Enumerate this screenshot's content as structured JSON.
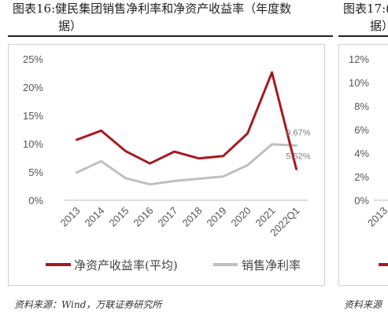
{
  "left_panel": {
    "title_line1": "图表16:健民集团销售净利率和净资产收益率（年度数",
    "title_line2": "据）",
    "source": "资料来源：Wind，万联证券研究所"
  },
  "right_panel": {
    "title_line1": "图表17:(",
    "title_line2": "据）",
    "source": "资料来源",
    "y_ticks": [
      "12%",
      "10%",
      "8%",
      "6%",
      "4%",
      "2%",
      "0%"
    ],
    "x_tick_partial": "2013"
  },
  "chart_data": {
    "type": "line",
    "categories": [
      "2013",
      "2014",
      "2015",
      "2016",
      "2017",
      "2018",
      "2019",
      "2020",
      "2021",
      "2022Q1"
    ],
    "series": [
      {
        "name": "净资产收益率(平均)",
        "color": "#a8191f",
        "values": [
          10.7,
          12.3,
          8.7,
          6.5,
          8.6,
          7.4,
          7.8,
          11.8,
          22.6,
          5.52
        ]
      },
      {
        "name": "销售净利率",
        "color": "#bfbfbf",
        "values": [
          4.9,
          6.9,
          3.9,
          2.8,
          3.4,
          3.8,
          4.2,
          6.2,
          9.9,
          9.67
        ]
      }
    ],
    "y_ticks": [
      "0%",
      "5%",
      "10%",
      "15%",
      "20%",
      "25%"
    ],
    "ylim": [
      0,
      25
    ],
    "data_labels": [
      {
        "series": 1,
        "index": 9,
        "text": "9.67%"
      },
      {
        "series": 0,
        "index": 9,
        "text": "5.52%"
      }
    ],
    "legend_position": "bottom",
    "grid": false
  }
}
